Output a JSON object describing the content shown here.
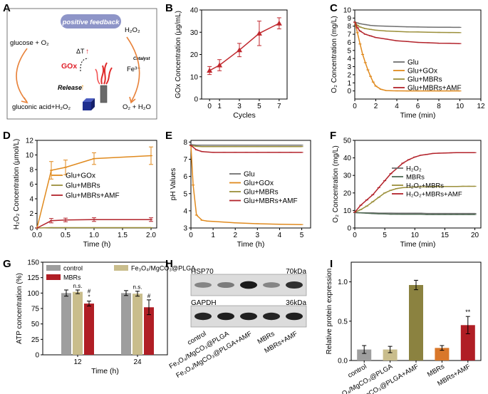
{
  "panel_letters": [
    "A",
    "B",
    "C",
    "D",
    "E",
    "F",
    "G",
    "H",
    "I"
  ],
  "panel_a": {
    "banner": "positive feedback",
    "glucose_o2": "glucose + O₂",
    "gluconic": "gluconic acid+H₂O₂",
    "h2o2": "H₂O₂",
    "o2_h2o": "O₂ + H₂O",
    "fe3": "Fe³⁺",
    "catalyst": "Catalyst",
    "gox": "GOx",
    "delta_t": "ΔT",
    "release": "Release",
    "colors": {
      "banner": "#8e95c8",
      "arrow": "#e8823a",
      "gox": "#e0202a",
      "cube": "#1f2f8f"
    }
  },
  "panel_h": {
    "bands": [
      {
        "label": "HSP70",
        "kda": "70kDa",
        "intensities": [
          0.45,
          0.5,
          0.95,
          0.45,
          0.85
        ]
      },
      {
        "label": "GAPDH",
        "kda": "36kDa",
        "intensities": [
          0.9,
          0.92,
          0.92,
          0.9,
          0.92
        ]
      }
    ],
    "lanes": [
      "control",
      "Fe₃O₄/MgCO₃@PLGA",
      "Fe₃O₄/MgCO₃@PLGA+AMF",
      "MBRs",
      "MBRs+AMF"
    ]
  },
  "chart_data": [
    {
      "panel": "B",
      "type": "line",
      "xlabel": "Cycles",
      "ylabel": "GOx Concentration (μg/mL)",
      "xlim": [
        -0.8,
        7.8
      ],
      "ylim": [
        0,
        40
      ],
      "xticks": [
        0,
        1,
        3,
        5,
        7
      ],
      "yticks": [
        0,
        10,
        20,
        30,
        40
      ],
      "series": [
        {
          "name": "GOx",
          "color": "#c0282e",
          "x": [
            0,
            1,
            3,
            5,
            7
          ],
          "y": [
            12.8,
            15.2,
            22.0,
            29.5,
            34.0
          ],
          "err": [
            1.8,
            2.5,
            3.0,
            5.5,
            2.5
          ]
        }
      ]
    },
    {
      "panel": "C",
      "type": "line",
      "xlabel": "Time (min)",
      "ylabel": "O₂ Concentration (mg/L)",
      "xlim": [
        0,
        12
      ],
      "ylim": [
        -1,
        10
      ],
      "xticks": [
        0,
        2,
        4,
        6,
        8,
        10,
        12
      ],
      "yticks": [
        0,
        1,
        2,
        3,
        4,
        5,
        6,
        7,
        8,
        9,
        10
      ],
      "series": [
        {
          "name": "Glu",
          "color": "#6f6f6f",
          "x": [
            0,
            0.25,
            0.5,
            1,
            1.5,
            2,
            3,
            4,
            5,
            6,
            7,
            8,
            9,
            10
          ],
          "y": [
            8.5,
            8.4,
            8.3,
            8.2,
            8.1,
            8.05,
            8.0,
            7.95,
            7.92,
            7.9,
            7.88,
            7.87,
            7.86,
            7.85
          ]
        },
        {
          "name": "Glu+GOx",
          "color": "#e08a1e",
          "x": [
            0,
            0.25,
            0.5,
            0.75,
            1,
            1.25,
            1.5,
            1.75,
            2,
            2.5,
            3,
            3.5,
            4,
            5,
            6,
            7,
            8,
            9,
            10
          ],
          "y": [
            8.5,
            7.2,
            5.8,
            4.5,
            3.5,
            2.6,
            1.8,
            1.1,
            0.6,
            0.2,
            0.05,
            0.02,
            0.01,
            0,
            0,
            0,
            0,
            0,
            0
          ]
        },
        {
          "name": "Glu+MBRs",
          "color": "#9b8f3a",
          "x": [
            0,
            0.25,
            0.5,
            1,
            1.5,
            2,
            3,
            4,
            5,
            6,
            7,
            8,
            9,
            10
          ],
          "y": [
            8.5,
            8.1,
            7.9,
            7.7,
            7.6,
            7.5,
            7.4,
            7.35,
            7.3,
            7.28,
            7.25,
            7.23,
            7.22,
            7.2
          ]
        },
        {
          "name": "Glu+MBRs+AMF",
          "color": "#b3232b",
          "x": [
            0,
            0.25,
            0.5,
            1,
            1.5,
            2,
            3,
            4,
            5,
            6,
            7,
            8,
            9,
            10
          ],
          "y": [
            8.5,
            7.8,
            7.4,
            7.0,
            6.8,
            6.6,
            6.4,
            6.2,
            6.1,
            6.0,
            5.95,
            5.9,
            5.88,
            5.85
          ]
        }
      ]
    },
    {
      "panel": "D",
      "type": "line",
      "xlabel": "Time (h)",
      "ylabel": "H₂O₂ Concentration (μmol/L)",
      "xlim": [
        0,
        2.1
      ],
      "ylim": [
        0,
        12
      ],
      "xticks": [
        0,
        0.5,
        1.0,
        1.5,
        2.0
      ],
      "xticklabels": [
        "0.0",
        "0.5",
        "1.0",
        "1.5",
        "2.0"
      ],
      "yticks": [
        0,
        2,
        4,
        6,
        8,
        10,
        12
      ],
      "series": [
        {
          "name": "Glu+GOx",
          "color": "#e08a1e",
          "x": [
            0,
            0.25,
            0.5,
            1.0,
            2.0
          ],
          "y": [
            0,
            7.9,
            8.3,
            9.5,
            9.9
          ],
          "err": [
            0,
            1.2,
            1.0,
            0.8,
            1.2
          ]
        },
        {
          "name": "Glu+MBRs",
          "color": "#9b8f3a",
          "x": [
            0,
            0.25,
            0.5,
            1.0,
            2.0
          ],
          "y": [
            0,
            0.05,
            0.05,
            0.05,
            0.05
          ],
          "err": [
            0,
            0,
            0,
            0,
            0
          ]
        },
        {
          "name": "Glu+MBRs+AMF",
          "color": "#b3232b",
          "x": [
            0,
            0.25,
            0.5,
            1.0,
            2.0
          ],
          "y": [
            0,
            1.0,
            1.1,
            1.15,
            1.15
          ],
          "err": [
            0,
            0.3,
            0.25,
            0.25,
            0.25
          ]
        }
      ]
    },
    {
      "panel": "E",
      "type": "line",
      "xlabel": "Time (h)",
      "ylabel": "pH Values",
      "xlim": [
        0,
        5.4
      ],
      "ylim": [
        3,
        8.1
      ],
      "xticks": [
        0,
        1,
        2,
        3,
        4,
        5
      ],
      "yticks": [
        3,
        4,
        5,
        6,
        7,
        8
      ],
      "series": [
        {
          "name": "Glu",
          "color": "#6f6f6f",
          "x": [
            0,
            0.25,
            0.5,
            0.75,
            1,
            1.5,
            2,
            2.5,
            3,
            3.5,
            4,
            4.5,
            5
          ],
          "y": [
            7.85,
            7.82,
            7.82,
            7.82,
            7.82,
            7.82,
            7.82,
            7.82,
            7.82,
            7.82,
            7.82,
            7.82,
            7.82
          ]
        },
        {
          "name": "Glu+GOx",
          "color": "#e08a1e",
          "x": [
            0,
            0.1,
            0.25,
            0.5,
            0.75,
            1,
            2,
            3,
            4,
            5
          ],
          "y": [
            7.8,
            5.5,
            3.75,
            3.45,
            3.4,
            3.38,
            3.3,
            3.25,
            3.22,
            3.2
          ]
        },
        {
          "name": "Glu+MBRs",
          "color": "#9b8f3a",
          "x": [
            0,
            0.25,
            0.5,
            0.75,
            1,
            1.5,
            2,
            2.5,
            3,
            3.5,
            4,
            4.5,
            5
          ],
          "y": [
            7.8,
            7.75,
            7.74,
            7.74,
            7.74,
            7.74,
            7.74,
            7.74,
            7.74,
            7.74,
            7.74,
            7.74,
            7.74
          ]
        },
        {
          "name": "Glu+MBRs+AMF",
          "color": "#b3232b",
          "x": [
            0,
            0.25,
            0.5,
            0.75,
            1,
            1.5,
            2,
            2.5,
            3,
            3.5,
            4,
            4.5,
            5
          ],
          "y": [
            7.8,
            7.55,
            7.45,
            7.42,
            7.4,
            7.4,
            7.4,
            7.4,
            7.4,
            7.4,
            7.4,
            7.4,
            7.4
          ]
        }
      ]
    },
    {
      "panel": "F",
      "type": "line",
      "xlabel": "Time (min)",
      "ylabel": "O₂ Concentration (mg/L)",
      "xlim": [
        0,
        21
      ],
      "ylim": [
        0,
        50
      ],
      "xticks": [
        0,
        5,
        10,
        15,
        20
      ],
      "yticks": [
        0,
        10,
        20,
        30,
        40,
        50
      ],
      "series": [
        {
          "name": "H₂O₂",
          "color": "#6f6f6f",
          "x": [
            0,
            1,
            2,
            3,
            4,
            5,
            6,
            7,
            8,
            9,
            10,
            11,
            12,
            13,
            14,
            15,
            16,
            17,
            18,
            19,
            20
          ],
          "y": [
            8.8,
            8.7,
            8.6,
            8.6,
            8.5,
            8.5,
            8.5,
            8.4,
            8.4,
            8.4,
            8.4,
            8.4,
            8.3,
            8.3,
            8.3,
            8.3,
            8.3,
            8.3,
            8.3,
            8.3,
            8.3
          ]
        },
        {
          "name": "MBRs",
          "color": "#4f6a54",
          "x": [
            0,
            1,
            2,
            3,
            4,
            5,
            6,
            7,
            8,
            9,
            10,
            11,
            12,
            13,
            14,
            15,
            16,
            17,
            18,
            19,
            20
          ],
          "y": [
            8.8,
            8.6,
            8.4,
            8.2,
            8.1,
            8.0,
            7.9,
            7.9,
            7.8,
            7.8,
            7.8,
            7.8,
            7.7,
            7.7,
            7.7,
            7.7,
            7.7,
            7.7,
            7.7,
            7.7,
            7.7
          ]
        },
        {
          "name": "H₂O₂+MBRs",
          "color": "#9b8f3a",
          "x": [
            0,
            1,
            2,
            3,
            4,
            5,
            6,
            7,
            8,
            9,
            10,
            11,
            12,
            13,
            14,
            15,
            16,
            17,
            18,
            19,
            20
          ],
          "y": [
            9,
            10.5,
            12.5,
            15,
            17.5,
            20,
            21.5,
            22.5,
            23,
            23.2,
            23.4,
            23.5,
            23.5,
            23.6,
            23.6,
            23.7,
            23.7,
            23.7,
            23.8,
            23.8,
            23.8
          ]
        },
        {
          "name": "H₂O₂+MBRs+AMF",
          "color": "#b3232b",
          "x": [
            0,
            1,
            2,
            3,
            4,
            5,
            6,
            7,
            8,
            9,
            10,
            11,
            12,
            13,
            14,
            15,
            16,
            17,
            18,
            19,
            20
          ],
          "y": [
            9,
            13,
            16,
            19,
            23,
            27,
            31,
            34,
            37,
            39,
            40.5,
            41.5,
            42,
            42.5,
            42.7,
            42.8,
            42.9,
            43,
            43,
            43,
            43
          ]
        }
      ]
    },
    {
      "panel": "G",
      "type": "bar",
      "xlabel": "Time (h)",
      "ylabel": "ATP concentration (%)",
      "ylim": [
        0,
        150
      ],
      "yticks": [
        0,
        25,
        50,
        75,
        100,
        125,
        150
      ],
      "categories": [
        "12",
        "24"
      ],
      "series": [
        {
          "name": "control",
          "color": "#9e9e9e",
          "values": [
            100,
            100
          ],
          "err": [
            5,
            4
          ]
        },
        {
          "name": "Fe₃O₄/MgCO₃@PLGA",
          "color": "#c9bd8c",
          "values": [
            102,
            99
          ],
          "err": [
            3,
            4
          ],
          "annotations": [
            "n.s.",
            "n.s."
          ]
        },
        {
          "name": "MBRs",
          "color": "#b01e25",
          "values": [
            83,
            77
          ],
          "err": [
            4,
            12
          ],
          "annotations": [
            "#\n*",
            "#"
          ]
        }
      ]
    },
    {
      "panel": "I",
      "type": "bar",
      "ylabel": "Relative protein expression",
      "ylim": [
        0,
        1.25
      ],
      "yticks": [
        0.0,
        0.5,
        1.0
      ],
      "yticklabels": [
        "0.0",
        "0.5",
        "1.0"
      ],
      "categories": [
        "control",
        "Fe₃O₄/MgCO₃@PLGA",
        "Fe₃O₄/MgCO₃@PLGA+AMF",
        "MBRs",
        "MBRs+AMF"
      ],
      "colors": [
        "#9e9e9e",
        "#c9bd8c",
        "#8b8240",
        "#d9772a",
        "#b01e25"
      ],
      "values": [
        0.14,
        0.14,
        0.96,
        0.16,
        0.45
      ],
      "err": [
        0.05,
        0.04,
        0.06,
        0.03,
        0.11
      ],
      "annotations": [
        "",
        "",
        "",
        "",
        "**"
      ]
    }
  ]
}
